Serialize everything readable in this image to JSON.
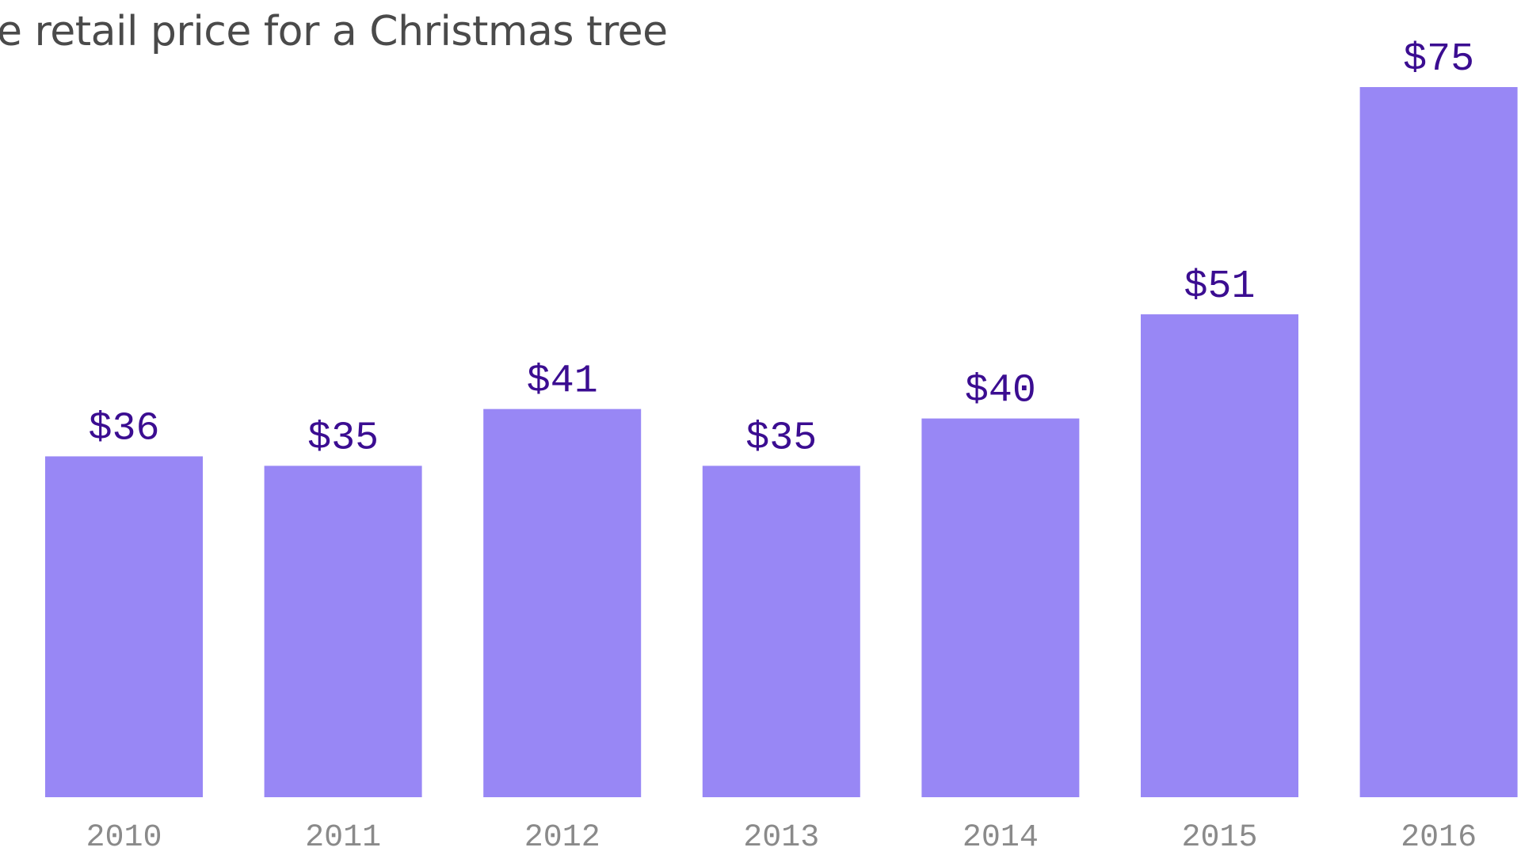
{
  "chart_data": {
    "type": "bar",
    "title": "e retail price for a Christmas tree",
    "categories": [
      "2010",
      "2011",
      "2012",
      "2013",
      "2014",
      "2015",
      "2016"
    ],
    "values": [
      36,
      35,
      41,
      35,
      40,
      51,
      75
    ],
    "data_labels": [
      "$36",
      "$35",
      "$41",
      "$35",
      "$40",
      "$51",
      "$75"
    ],
    "xlabel": "",
    "ylabel": "",
    "ylim": [
      0,
      75
    ],
    "grid": false,
    "bar_color": "#9887f5",
    "label_color": "#3b0d91",
    "tick_color": "#8a8a8a"
  }
}
